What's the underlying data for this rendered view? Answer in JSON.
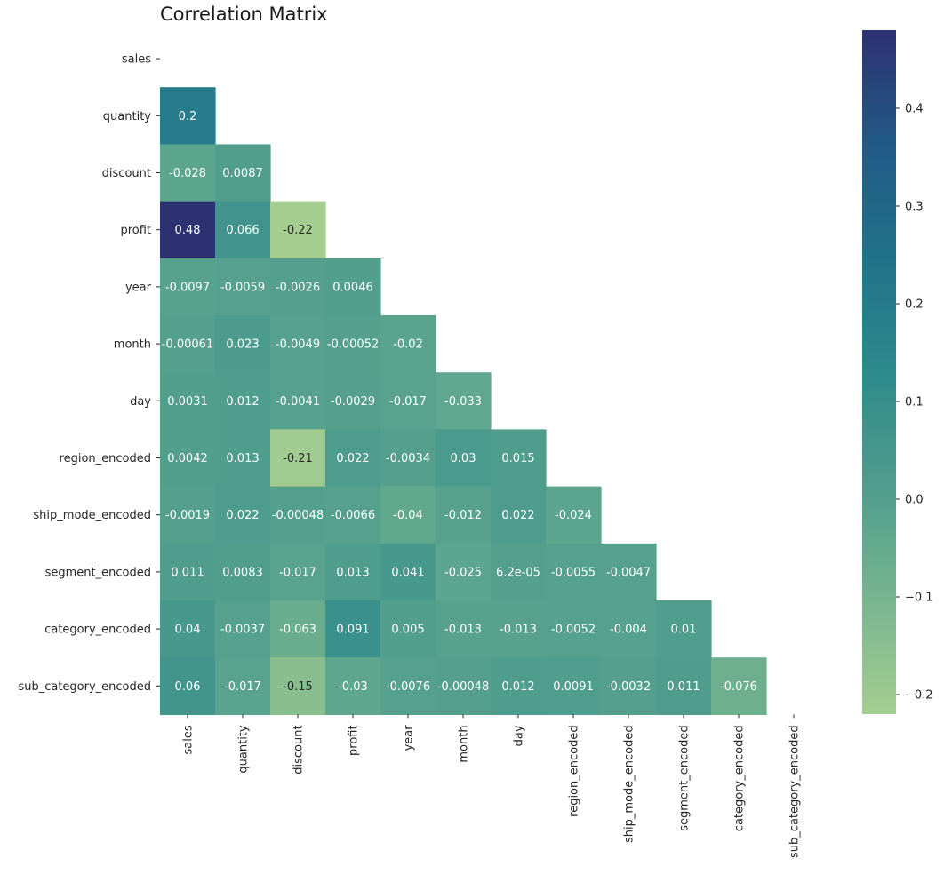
{
  "chart_data": {
    "type": "heatmap",
    "title": "Correlation Matrix",
    "mask": "upper-triangle-including-diagonal",
    "labels": [
      "sales",
      "quantity",
      "discount",
      "profit",
      "year",
      "month",
      "day",
      "region_encoded",
      "ship_mode_encoded",
      "segment_encoded",
      "category_encoded",
      "sub_category_encoded"
    ],
    "rows": [
      {
        "row": "quantity",
        "values": [
          0.2
        ],
        "labels": [
          "0.2"
        ]
      },
      {
        "row": "discount",
        "values": [
          -0.028,
          0.0087
        ],
        "labels": [
          "-0.028",
          "0.0087"
        ]
      },
      {
        "row": "profit",
        "values": [
          0.48,
          0.066,
          -0.22
        ],
        "labels": [
          "0.48",
          "0.066",
          "-0.22"
        ]
      },
      {
        "row": "year",
        "values": [
          -0.0097,
          -0.0059,
          -0.0026,
          0.0046
        ],
        "labels": [
          "-0.0097",
          "-0.0059",
          "-0.0026",
          "0.0046"
        ]
      },
      {
        "row": "month",
        "values": [
          -0.00061,
          0.023,
          -0.0049,
          -0.00052,
          -0.02
        ],
        "labels": [
          "-0.00061",
          "0.023",
          "-0.0049",
          "-0.00052",
          "-0.02"
        ]
      },
      {
        "row": "day",
        "values": [
          0.0031,
          0.012,
          -0.0041,
          -0.0029,
          -0.017,
          -0.033
        ],
        "labels": [
          "0.0031",
          "0.012",
          "-0.0041",
          "-0.0029",
          "-0.017",
          "-0.033"
        ]
      },
      {
        "row": "region_encoded",
        "values": [
          0.0042,
          0.013,
          -0.21,
          0.022,
          -0.0034,
          0.03,
          0.015
        ],
        "labels": [
          "0.0042",
          "0.013",
          "-0.21",
          "0.022",
          "-0.0034",
          "0.03",
          "0.015"
        ]
      },
      {
        "row": "ship_mode_encoded",
        "values": [
          -0.0019,
          0.022,
          -0.00048,
          -0.0066,
          -0.04,
          -0.012,
          0.022,
          -0.024
        ],
        "labels": [
          "-0.0019",
          "0.022",
          "-0.00048",
          "-0.0066",
          "-0.04",
          "-0.012",
          "0.022",
          "-0.024"
        ]
      },
      {
        "row": "segment_encoded",
        "values": [
          0.011,
          0.0083,
          -0.017,
          0.013,
          0.041,
          -0.025,
          6.2e-05,
          -0.0055,
          -0.0047
        ],
        "labels": [
          "0.011",
          "0.0083",
          "-0.017",
          "0.013",
          "0.041",
          "-0.025",
          "6.2e-05",
          "-0.0055",
          "-0.0047"
        ]
      },
      {
        "row": "category_encoded",
        "values": [
          0.04,
          -0.0037,
          -0.063,
          0.091,
          0.005,
          -0.013,
          -0.013,
          -0.0052,
          -0.004,
          0.01
        ],
        "labels": [
          "0.04",
          "-0.0037",
          "-0.063",
          "0.091",
          "0.005",
          "-0.013",
          "-0.013",
          "-0.0052",
          "-0.004",
          "0.01"
        ]
      },
      {
        "row": "sub_category_encoded",
        "values": [
          0.06,
          -0.017,
          -0.15,
          -0.03,
          -0.0076,
          -0.00048,
          0.012,
          0.0091,
          -0.0032,
          0.011,
          -0.076
        ],
        "labels": [
          "0.06",
          "-0.017",
          "-0.15",
          "-0.03",
          "-0.0076",
          "-0.00048",
          "0.012",
          "0.0091",
          "-0.0032",
          "0.011",
          "-0.076"
        ]
      }
    ],
    "colorbar": {
      "vmin": -0.22,
      "vmax": 0.48,
      "ticks": [
        -0.2,
        -0.1,
        0.0,
        0.1,
        0.2,
        0.3,
        0.4
      ],
      "tick_labels": [
        "−0.2",
        "−0.1",
        "0.0",
        "0.1",
        "0.2",
        "0.3",
        "0.4"
      ],
      "colormap": "crest",
      "colors": [
        "#a5cd90",
        "#77b58f",
        "#4f9d8d",
        "#2e8a8c",
        "#20728a",
        "#225a86",
        "#2c3172"
      ]
    }
  }
}
